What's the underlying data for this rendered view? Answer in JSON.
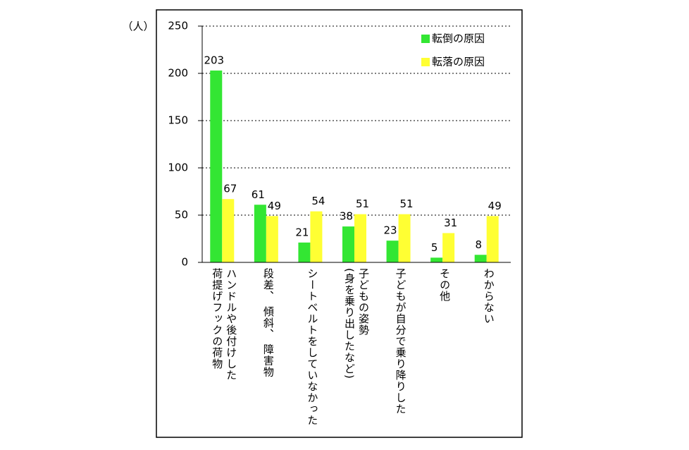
{
  "chart_data": {
    "type": "bar",
    "unit_label": "（人）",
    "categories": [
      "ハンドルや後付けした\n荷提げフックの荷物",
      "段差、 傾斜、 障害物",
      "シートベルトをしていなかった",
      "子どもの姿勢\n(身を乗り出したなど)",
      "子どもが自分で乗り降りした",
      "その他",
      "わからない"
    ],
    "series": [
      {
        "name": "転倒の原因",
        "color": "#33e633",
        "values": [
          203,
          61,
          21,
          38,
          23,
          5,
          8
        ]
      },
      {
        "name": "転落の原因",
        "color": "#ffff33",
        "values": [
          67,
          49,
          54,
          51,
          51,
          31,
          49
        ]
      }
    ],
    "ylim": [
      0,
      250
    ],
    "yticks": [
      0,
      50,
      100,
      150,
      200,
      250
    ],
    "grid": true,
    "legend": "top-right"
  }
}
